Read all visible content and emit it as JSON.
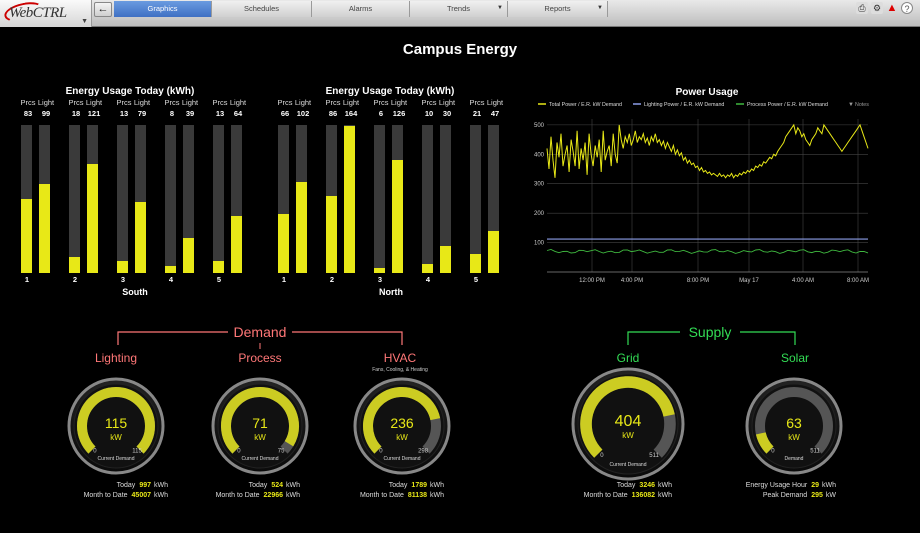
{
  "app": {
    "logo_text": "WebCTRL"
  },
  "nav": {
    "back": "←",
    "tabs": [
      {
        "label": "Graphics",
        "active": true
      },
      {
        "label": "Schedules",
        "active": false
      },
      {
        "label": "Alarms",
        "active": false
      },
      {
        "label": "Trends",
        "active": false,
        "dropdown": true
      },
      {
        "label": "Reports",
        "active": false,
        "dropdown": true
      }
    ]
  },
  "page": {
    "title": "Campus Energy"
  },
  "usage": {
    "title": "Energy Usage Today  (kWh)",
    "col_prcs": "Prcs",
    "col_light": "Light",
    "south": {
      "name": "South",
      "pairs": [
        {
          "n": "1",
          "prcs": 83,
          "light": 99
        },
        {
          "n": "2",
          "prcs": 18,
          "light": 121
        },
        {
          "n": "3",
          "prcs": 13,
          "light": 79
        },
        {
          "n": "4",
          "prcs": 8,
          "light": 39
        },
        {
          "n": "5",
          "prcs": 13,
          "light": 64
        }
      ]
    },
    "north": {
      "name": "North",
      "pairs": [
        {
          "n": "1",
          "prcs": 66,
          "light": 102
        },
        {
          "n": "2",
          "prcs": 86,
          "light": 164
        },
        {
          "n": "3",
          "prcs": 6,
          "light": 126
        },
        {
          "n": "4",
          "prcs": 10,
          "light": 30
        },
        {
          "n": "5",
          "prcs": 21,
          "light": 47
        }
      ]
    }
  },
  "chart_data": {
    "type": "line",
    "title": "Power Usage",
    "legend": [
      "Total Power / E.R. kW Demand",
      "Lighting Power / E.R. kW Demand",
      "Process Power / E.R. kW Demand",
      "Notes"
    ],
    "ylim": [
      0,
      520
    ],
    "yticks": [
      100,
      200,
      300,
      400,
      500
    ],
    "xticks": [
      "12:00 PM",
      "4:00 PM",
      "8:00 PM",
      "May 17",
      "4:00 AM",
      "8:00 AM"
    ],
    "series": [
      {
        "name": "Total Power / E.R. kW Demand",
        "color": "#e8e817",
        "x": [
          0,
          2,
          4,
          6,
          8,
          10,
          12,
          14,
          16,
          18,
          20,
          22,
          24,
          26,
          28,
          30,
          32,
          34,
          36,
          38,
          40,
          42,
          44,
          46,
          48,
          50,
          52,
          54,
          56,
          58,
          60,
          62,
          64,
          66,
          68,
          70,
          72,
          74,
          76,
          78,
          80,
          82,
          84,
          86,
          88,
          90,
          92,
          94,
          96,
          98,
          100,
          102,
          104,
          106,
          108,
          110,
          112,
          114,
          116,
          118,
          120,
          122,
          124,
          126,
          128,
          130,
          132,
          134,
          136,
          138,
          140,
          142,
          144,
          146,
          148,
          150,
          152,
          154,
          156,
          158,
          160,
          162,
          164,
          166,
          168,
          170,
          172,
          174,
          176,
          178,
          180,
          182,
          184,
          186,
          188,
          190,
          192,
          194,
          196,
          198,
          200,
          202,
          204,
          206,
          208,
          210,
          212,
          214,
          216,
          218,
          220,
          222,
          224,
          226,
          228,
          230,
          232,
          234,
          236,
          238,
          240,
          242,
          244,
          246,
          248,
          250,
          252,
          254,
          256,
          258,
          260,
          262,
          264,
          266,
          268,
          270,
          272,
          274,
          276,
          278,
          280,
          282,
          284,
          286,
          288,
          290,
          292,
          294,
          296,
          298,
          300,
          302,
          304,
          306,
          308,
          310,
          312,
          314,
          316,
          318,
          320
        ],
        "y": [
          420,
          350,
          460,
          380,
          320,
          440,
          390,
          470,
          360,
          400,
          430,
          340,
          450,
          410,
          360,
          480,
          350,
          420,
          380,
          440,
          330,
          470,
          400,
          360,
          430,
          390,
          450,
          340,
          480,
          380,
          410,
          430,
          360,
          470,
          400,
          370,
          500,
          450,
          420,
          460,
          440,
          470,
          430,
          450,
          480,
          440,
          460,
          450,
          470,
          440,
          455,
          430,
          460,
          445,
          470,
          440,
          450,
          430,
          445,
          420,
          440,
          425,
          410,
          430,
          400,
          415,
          395,
          405,
          380,
          390,
          370,
          380,
          365,
          370,
          355,
          360,
          345,
          355,
          340,
          345,
          335,
          340,
          330,
          335,
          330,
          325,
          335,
          325,
          330,
          320,
          330,
          325,
          335,
          320,
          330,
          325,
          335,
          330,
          340,
          335,
          345,
          340,
          350,
          345,
          360,
          355,
          365,
          360,
          375,
          370,
          380,
          390,
          385,
          400,
          395,
          410,
          420,
          430,
          440,
          460,
          470,
          480,
          490,
          500,
          470,
          490,
          480,
          460,
          470,
          450,
          440,
          430,
          450,
          460,
          470,
          490,
          480,
          470,
          500,
          490,
          480,
          470,
          460,
          450,
          440,
          430,
          420,
          410,
          420,
          430,
          440,
          450,
          460,
          470,
          480,
          490,
          500,
          480,
          460,
          440,
          420
        ]
      },
      {
        "name": "Lighting Power / E.R. kW Demand",
        "color": "#8c9ee8",
        "y_const": 112
      },
      {
        "name": "Process Power / E.R. kW Demand",
        "color": "#3fb83f",
        "y_mean": 70
      }
    ]
  },
  "demand": {
    "title": "Demand",
    "lighting": {
      "title": "Lighting",
      "value": "115",
      "unit": "kW",
      "min": "0",
      "max": "115",
      "caption": "Current Demand",
      "level": 1.0,
      "today": "997",
      "mtd": "45007"
    },
    "process": {
      "title": "Process",
      "value": "71",
      "unit": "kW",
      "min": "0",
      "max": "75",
      "caption": "Current Demand",
      "level": 0.95,
      "today": "524",
      "mtd": "22966"
    },
    "hvac": {
      "title": "HVAC",
      "subtitle": "Fans, Cooling, & Heating",
      "value": "236",
      "unit": "kW",
      "min": "0",
      "max": "298",
      "caption": "Current Demand",
      "level": 0.79,
      "today": "1789",
      "mtd": "81138"
    }
  },
  "supply": {
    "title": "Supply",
    "grid": {
      "title": "Grid",
      "value": "404",
      "unit": "kW",
      "min": "0",
      "max": "511",
      "caption": "Current Demand",
      "level": 0.79,
      "today": "3246",
      "mtd": "136082"
    },
    "solar": {
      "title": "Solar",
      "value": "63",
      "unit": "kW",
      "min": "0",
      "max": "511",
      "caption": "Demand",
      "level": 0.12,
      "usage_hour": "29",
      "peak": "295"
    }
  },
  "labels": {
    "today": "Today",
    "mtd": "Month to Date",
    "kwh": "kWh",
    "kw": "kW",
    "usage_hour": "Energy Usage Hour",
    "peak": "Peak Demand"
  },
  "colors": {
    "accent_yellow": "#e8e817",
    "demand_red": "#ff7777",
    "supply_green": "#33dd55"
  }
}
